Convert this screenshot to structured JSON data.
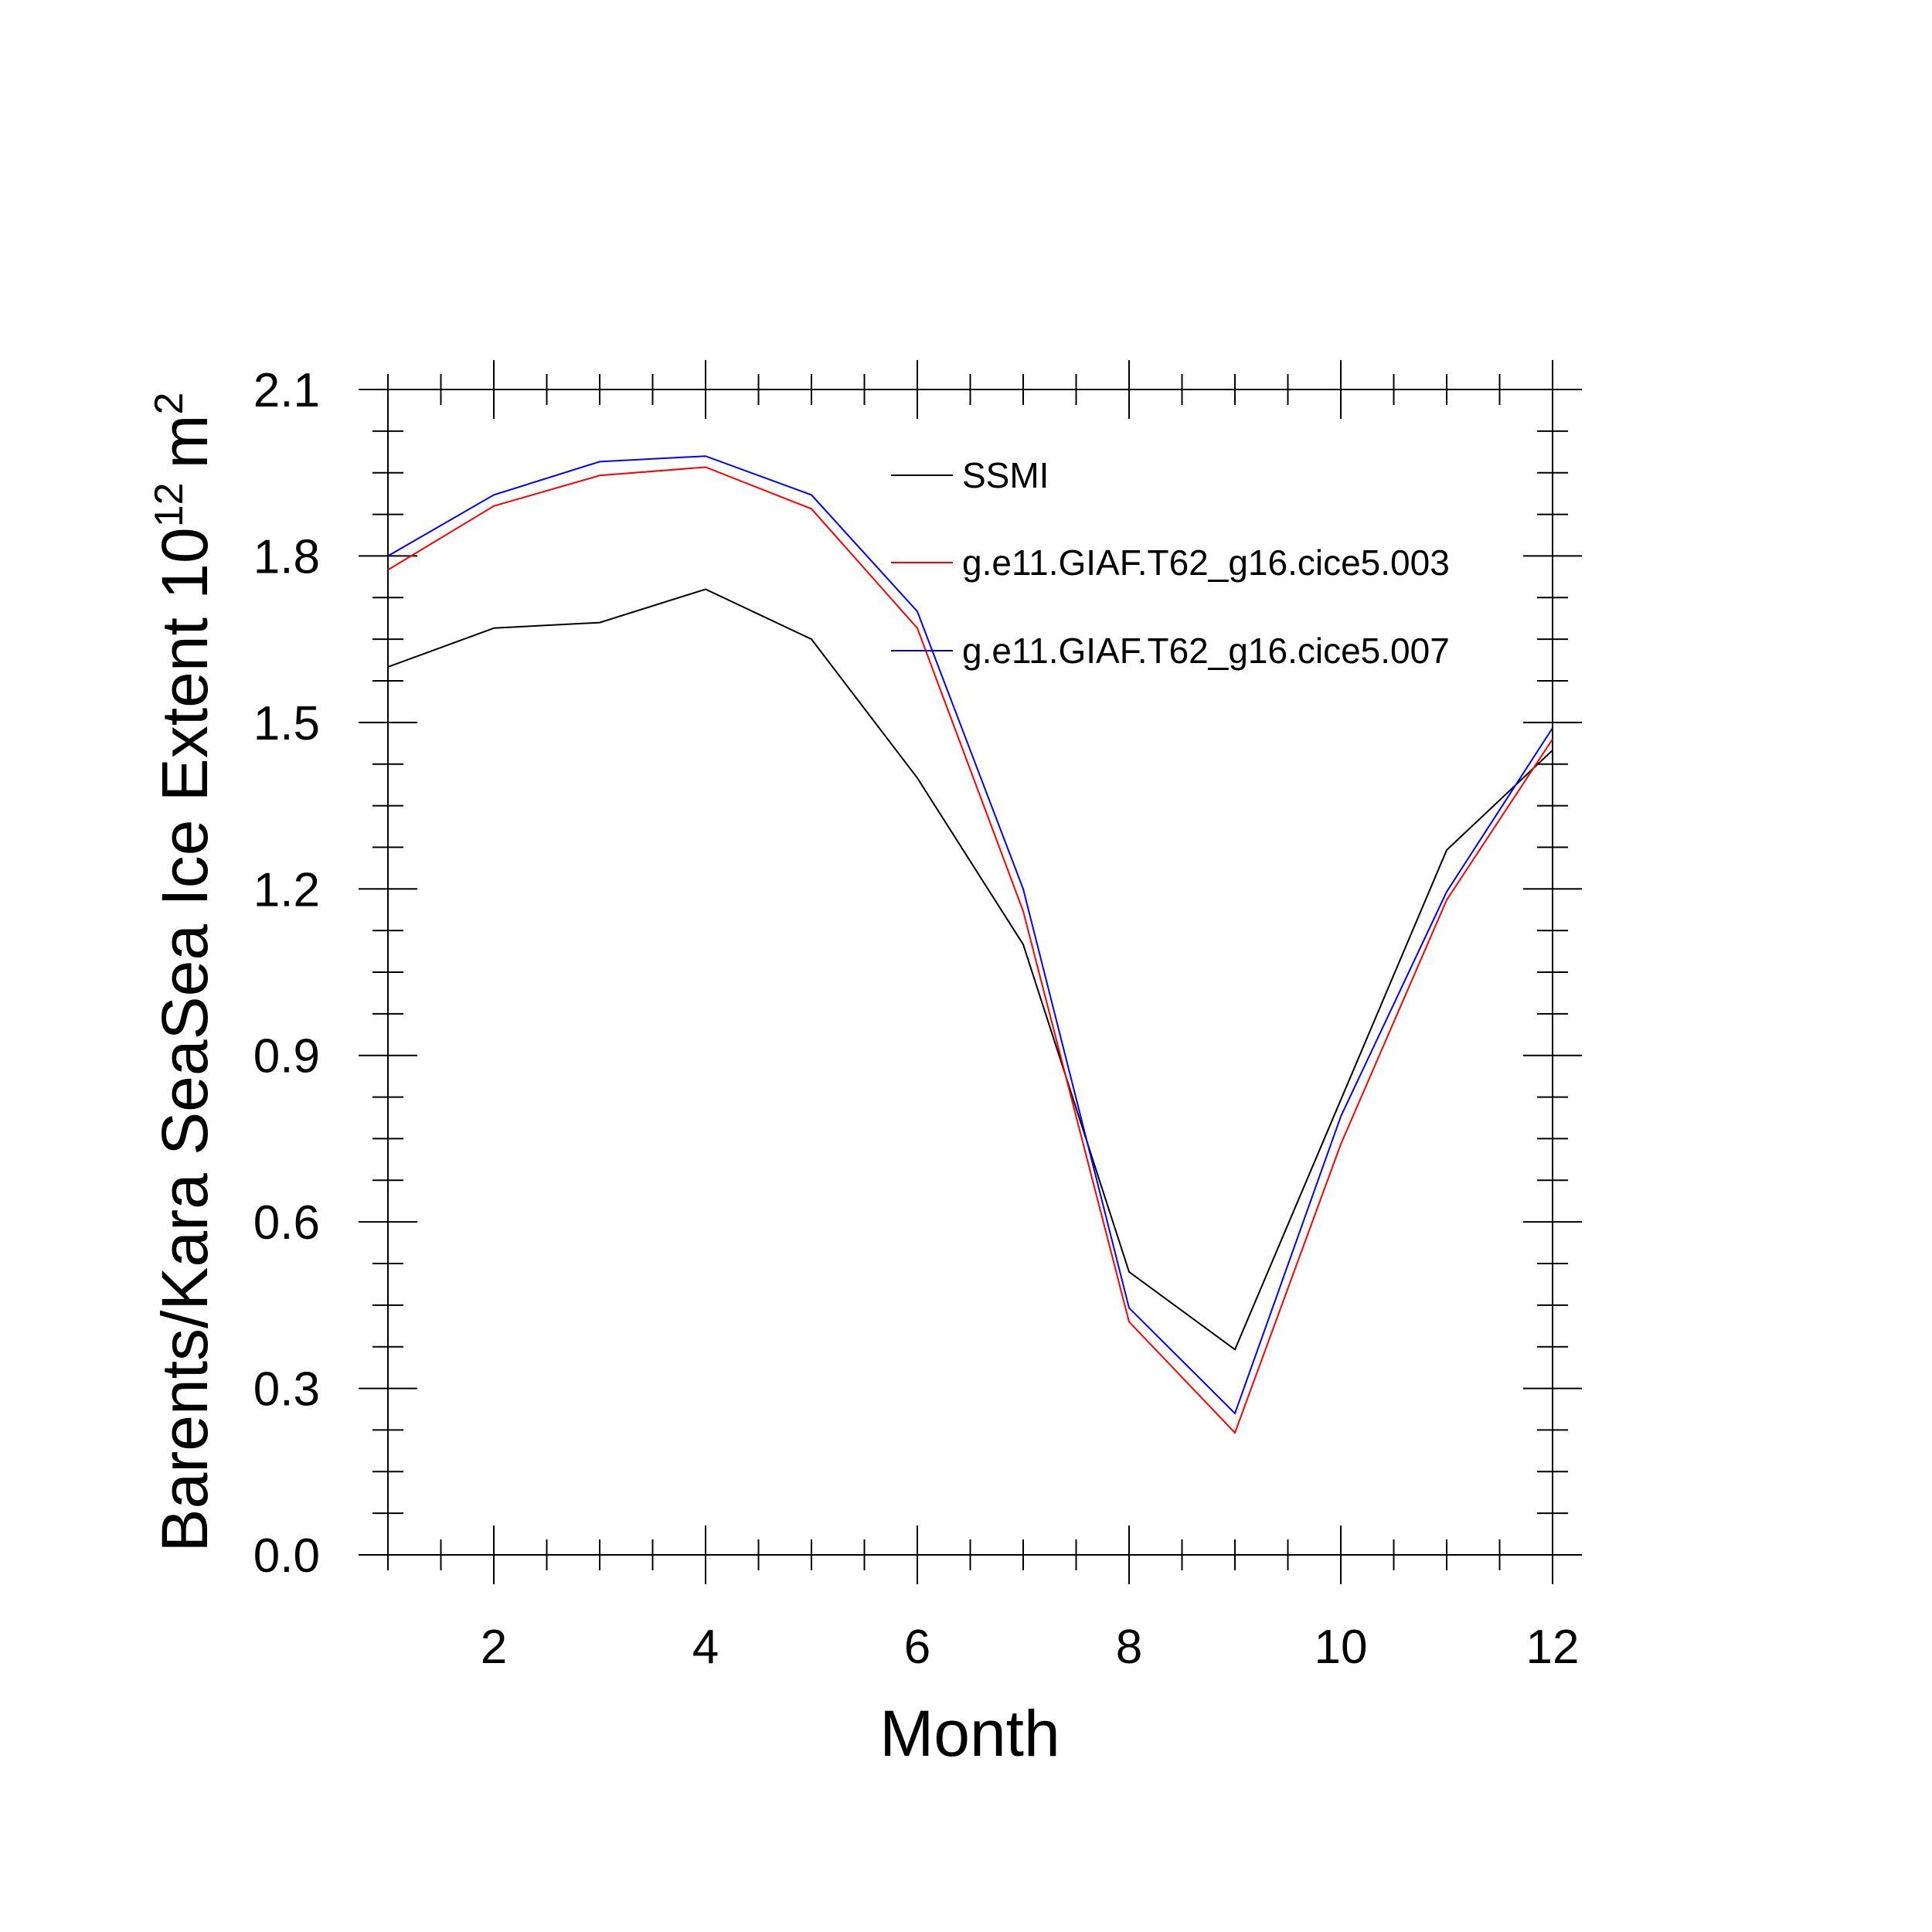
{
  "chart_data": {
    "type": "line",
    "xlabel": "Month",
    "ylabel": {
      "text": "Barents/Kara SeaSea Ice Extent 10",
      "exponent": "12",
      "unit": "m",
      "unit_exponent": "2"
    },
    "xlim": [
      1,
      12
    ],
    "ylim": [
      0.0,
      2.1
    ],
    "x_ticks": [
      2,
      4,
      6,
      8,
      10,
      12
    ],
    "x_tick_labels": [
      "2",
      "4",
      "6",
      "8",
      "10",
      "12"
    ],
    "y_ticks": [
      0.0,
      0.3,
      0.6,
      0.9,
      1.2,
      1.5,
      1.8,
      2.1
    ],
    "y_tick_labels": [
      "0.0",
      "0.3",
      "0.6",
      "0.9",
      "1.2",
      "1.5",
      "1.8",
      "2.1"
    ],
    "grid": false,
    "legend_position": "top-right",
    "x": [
      1,
      2,
      3,
      4,
      5,
      6,
      7,
      8,
      9,
      10,
      11,
      12
    ],
    "series": [
      {
        "name": "SSMI",
        "color": "#000000",
        "values": [
          1.6,
          1.67,
          1.68,
          1.74,
          1.65,
          1.4,
          1.1,
          0.51,
          0.37,
          0.82,
          1.27,
          1.45
        ]
      },
      {
        "name": "g.e11.GIAF.T62_g16.cice5.003",
        "color": "#ff0000",
        "values": [
          1.775,
          1.89,
          1.945,
          1.96,
          1.885,
          1.67,
          1.16,
          0.42,
          0.22,
          0.74,
          1.18,
          1.47
        ]
      },
      {
        "name": "g.e11.GIAF.T62_g16.cice5.007",
        "color": "#0000ff",
        "values": [
          1.8,
          1.91,
          1.97,
          1.98,
          1.91,
          1.7,
          1.2,
          0.445,
          0.255,
          0.79,
          1.195,
          1.49
        ]
      }
    ]
  }
}
